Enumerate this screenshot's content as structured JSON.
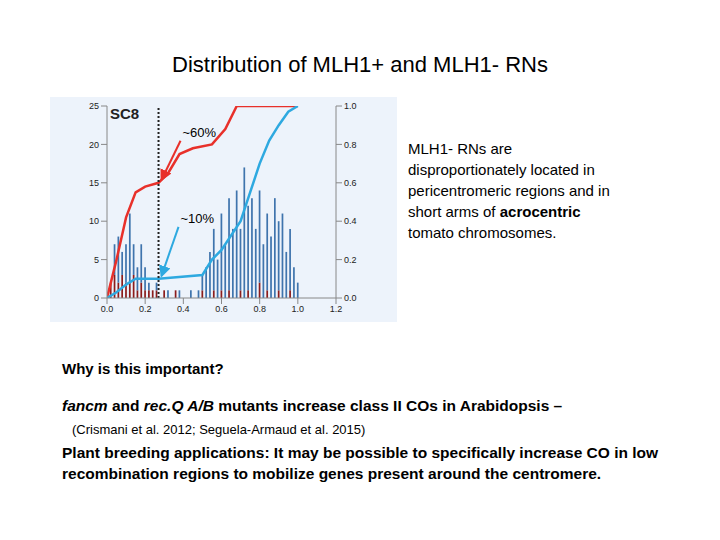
{
  "slide": {
    "title": "Distribution of MLH1+ and MLH1- RNs",
    "side_text": [
      {
        "text": "MLH1- RNs are disproportionately located in pericentromeric regions and in short arms of "
      },
      {
        "text": "acrocentric",
        "bold": true
      },
      {
        "text": " tomato chromosomes."
      }
    ],
    "question": "Why is this important?",
    "points": [
      [
        {
          "text": "fancm",
          "italic": true
        },
        {
          "text": " and "
        },
        {
          "text": "rec.Q A/B",
          "italic": true
        },
        {
          "text": "  mutants increase class II COs in Arabidopsis –"
        }
      ],
      [
        {
          "text": "(Crismani et al. 2012; Seguela-Armaud et al. 2015)",
          "small": true
        }
      ],
      [
        {
          "text": "Plant breeding applications: It may be possible to specifically increase CO in low recombination regions to mobilize genes present around the centromere."
        }
      ]
    ]
  },
  "chart_data": {
    "type": "bar",
    "title": "SC8",
    "stacked": true,
    "xlim": [
      0,
      1.2
    ],
    "xticks": [
      {
        "value": 0,
        "label": "0.0"
      },
      0.2,
      0.4,
      0.6,
      0.8,
      {
        "value": 1,
        "label": "1.0"
      },
      1.2
    ],
    "ylim": [
      0,
      25
    ],
    "yticks": [
      0,
      5,
      10,
      15,
      20,
      25
    ],
    "y2lim": [
      0,
      1
    ],
    "y2ticks": [
      {
        "value": 0,
        "label": "0.0"
      },
      0.2,
      0.4,
      0.6,
      0.8,
      {
        "value": 1,
        "label": "1.0"
      }
    ],
    "vline": 0.27,
    "series": [
      {
        "type": "bar",
        "color": "#8b1c1c",
        "x": [
          0.02,
          0.04,
          0.06,
          0.08,
          0.1,
          0.12,
          0.14,
          0.16,
          0.18,
          0.2,
          0.22,
          0.24,
          0.26,
          0.28,
          0.3,
          0.32,
          0.34,
          0.36,
          0.38,
          0.4,
          0.42,
          0.44,
          0.46,
          0.48,
          0.5,
          0.52,
          0.54,
          0.56,
          0.58,
          0.6,
          0.62,
          0.64,
          0.66,
          0.68,
          0.7,
          0.72,
          0.74,
          0.76,
          0.78,
          0.8,
          0.82,
          0.84,
          0.86,
          0.88,
          0.9,
          0.92,
          0.94,
          0.96,
          0.98,
          1.0
        ],
        "values": [
          2,
          3,
          2,
          3,
          2,
          2,
          3,
          1,
          2,
          1,
          1,
          1,
          1,
          0,
          1,
          0,
          0,
          1,
          0,
          0,
          0,
          0,
          0,
          0,
          1,
          0,
          0,
          1,
          0,
          1,
          0,
          1,
          0,
          0,
          1,
          0,
          1,
          0,
          0,
          2,
          0,
          1,
          0,
          0,
          1,
          0,
          0,
          1,
          0,
          0
        ]
      },
      {
        "type": "bar",
        "color": "#3f74ad",
        "x": [
          0.02,
          0.04,
          0.06,
          0.08,
          0.1,
          0.12,
          0.14,
          0.16,
          0.18,
          0.2,
          0.22,
          0.24,
          0.26,
          0.28,
          0.3,
          0.32,
          0.34,
          0.36,
          0.38,
          0.4,
          0.42,
          0.44,
          0.46,
          0.48,
          0.5,
          0.52,
          0.54,
          0.56,
          0.58,
          0.6,
          0.62,
          0.64,
          0.66,
          0.68,
          0.7,
          0.72,
          0.74,
          0.76,
          0.78,
          0.8,
          0.82,
          0.84,
          0.86,
          0.88,
          0.9,
          0.92,
          0.94,
          0.96,
          0.98,
          1.0
        ],
        "values": [
          0,
          4,
          6,
          3,
          5,
          9,
          4,
          3,
          5,
          3,
          1,
          0,
          1,
          0,
          0,
          1,
          0,
          0,
          1,
          0,
          0,
          1,
          0,
          1,
          2,
          4,
          6,
          8,
          5,
          10,
          7,
          12,
          9,
          14,
          8,
          17,
          11,
          13,
          9,
          12,
          7,
          10,
          8,
          13,
          9,
          11,
          6,
          8,
          4,
          2
        ]
      },
      {
        "type": "line",
        "axis": "y2",
        "color": "#e8302a",
        "x": [
          0,
          0.05,
          0.1,
          0.15,
          0.2,
          0.27,
          0.32,
          0.38,
          0.45,
          0.55,
          0.62,
          0.68,
          1.0
        ],
        "values": [
          0,
          0.2,
          0.42,
          0.55,
          0.58,
          0.6,
          0.65,
          0.75,
          0.78,
          0.8,
          0.88,
          1.0,
          1.0
        ]
      },
      {
        "type": "line",
        "axis": "y2",
        "color": "#2ea9e0",
        "x": [
          0,
          0.05,
          0.1,
          0.15,
          0.2,
          0.27,
          0.5,
          0.55,
          0.6,
          0.7,
          0.75,
          0.8,
          0.85,
          0.9,
          0.95,
          1.0
        ],
        "values": [
          0,
          0.03,
          0.07,
          0.1,
          0.1,
          0.1,
          0.12,
          0.2,
          0.25,
          0.4,
          0.55,
          0.7,
          0.82,
          0.9,
          0.97,
          1.0
        ]
      }
    ],
    "annotations": [
      {
        "text": "~60%",
        "x": 0.27,
        "y": 0.6,
        "axis": "y2",
        "color": "#e8302a"
      },
      {
        "text": "~10%",
        "x": 0.27,
        "y": 0.1,
        "axis": "y2",
        "color": "#2ea9e0"
      }
    ]
  }
}
